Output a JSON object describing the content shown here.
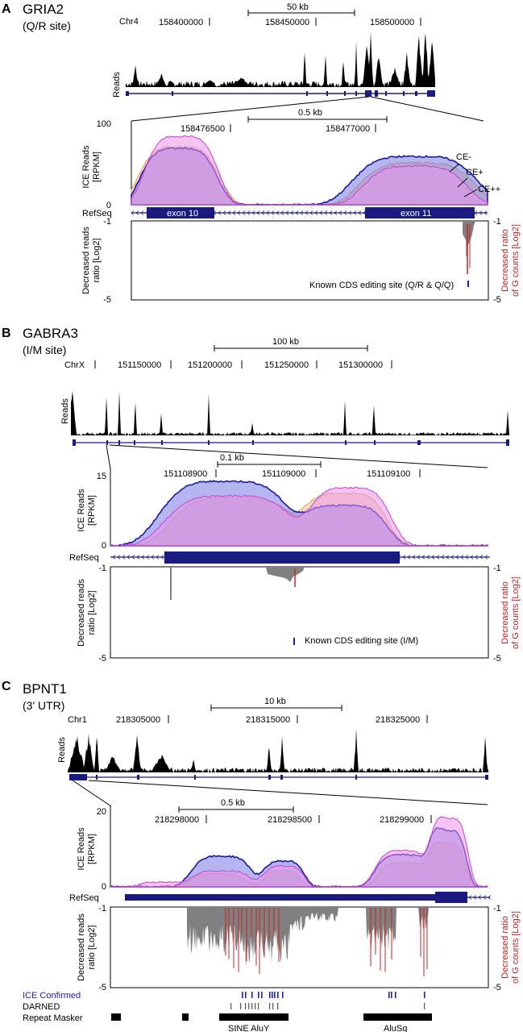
{
  "panels": [
    {
      "letter": "A",
      "gene": "GRIA2",
      "site": "(Q/R site)",
      "chrom": "Chr4",
      "scale": "50 kb",
      "coords": [
        "158400000",
        "158450000",
        "158500000"
      ],
      "reads_label": "Reads",
      "zoom_scale": "0.5 kb",
      "zoom_coords": [
        "158476500",
        "158477000"
      ],
      "ice_label_1": "ICE Reads",
      "ice_label_2": "[RPKM]",
      "ice_max": "100",
      "ice_min": "0",
      "refseq": "RefSeq",
      "exons": [
        "exon 10",
        "exon 11"
      ],
      "legend": [
        "CE-",
        "CE+",
        "CE++"
      ],
      "dec_label_1": "Decreased reads",
      "dec_label_2": "ratio [Log2]",
      "g_label_1": "Decreased ratio",
      "g_label_2": "of G counts [Log2]",
      "dec_top": "-1",
      "dec_bottom": "-5",
      "known_site": "Known CDS editing site (Q/R & Q/Q)"
    },
    {
      "letter": "B",
      "gene": "GABRA3",
      "site": "(I/M site)",
      "chrom": "ChrX",
      "scale": "100 kb",
      "coords": [
        "151150000",
        "151200000",
        "151250000",
        "151300000"
      ],
      "reads_label": "Reads",
      "zoom_scale": "0.1 kb",
      "zoom_coords": [
        "151108900",
        "151109000",
        "151109100"
      ],
      "ice_label_1": "ICE Reads",
      "ice_label_2": "[RPKM]",
      "ice_max": "15",
      "ice_min": "0",
      "refseq": "RefSeq",
      "dec_label_1": "Decreased reads",
      "dec_label_2": "ratio [Log2]",
      "g_label_1": "Decreased ratio",
      "g_label_2": "of G counts [Log2]",
      "dec_top": "-1",
      "dec_bottom": "-5",
      "known_site": "Known CDS editing site (I/M)"
    },
    {
      "letter": "C",
      "gene": "BPNT1",
      "site": "(3' UTR)",
      "chrom": "Chr1",
      "scale": "10 kb",
      "coords": [
        "218305000",
        "218315000",
        "218325000"
      ],
      "reads_label": "Reads",
      "zoom_scale": "0.5 kb",
      "zoom_coords": [
        "218298000",
        "218298500",
        "218299000"
      ],
      "ice_label_1": "ICE Reads",
      "ice_label_2": "[RPKM]",
      "ice_max": "20",
      "ice_min": "0",
      "refseq": "RefSeq",
      "dec_label_1": "Decreased reads",
      "dec_label_2": "ratio [Log2]",
      "g_label_1": "Decreased ratio",
      "g_label_2": "of G counts [Log2]",
      "dec_top": "-1",
      "dec_bottom": "-5",
      "tracks": [
        "ICE Confirmed",
        "DARNED",
        "Repeat Masker"
      ],
      "repeats": [
        "SINE AluY",
        "AluSq"
      ]
    }
  ],
  "colors": {
    "ce_minus": "#1a1aa0",
    "ce_plus": "#e0a040",
    "ce_plusplus": "#d040d0",
    "red": "#d02020",
    "grey": "#808080",
    "navy": "#1a1a80",
    "ice_blue": "#2020b0"
  }
}
